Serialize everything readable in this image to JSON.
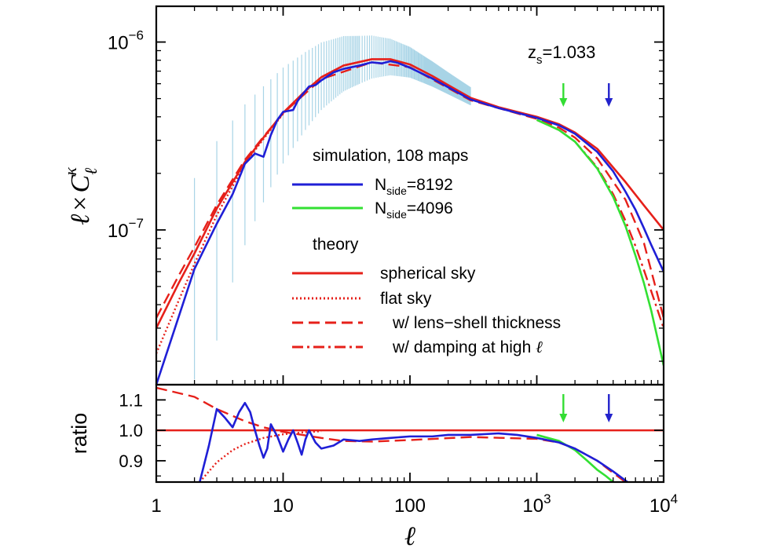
{
  "chart_data": [
    {
      "panel": "main",
      "type": "line",
      "x_scale": "log",
      "y_scale": "log",
      "xlim": [
        1,
        10000
      ],
      "ylim": [
        1.5e-08,
        1.55e-06
      ],
      "ytick_labels": [
        {
          "base": "10",
          "exp": "−6",
          "value": 1e-06
        },
        {
          "base": "10",
          "exp": "−7",
          "value": 1e-07
        }
      ],
      "annotation": {
        "label": "z",
        "sub": "s",
        "rest": "=1.033"
      },
      "arrows": [
        {
          "x": 1620,
          "color": "#33dd33"
        },
        {
          "x": 3700,
          "color": "#2222cc"
        }
      ],
      "legend": {
        "placement": "center",
        "group1_title": "simulation, 108 maps",
        "group2_title": "theory",
        "entries": [
          {
            "label": "N",
            "sub": "side",
            "rest": "=8192",
            "color": "#1f1fd6",
            "dash": "solid"
          },
          {
            "label": "N",
            "sub": "side",
            "rest": "=4096",
            "color": "#33e033",
            "dash": "solid"
          },
          {
            "label": "spherical sky",
            "sub": "",
            "rest": "",
            "color": "#e6201a",
            "dash": "solid"
          },
          {
            "label": "flat sky",
            "sub": "",
            "rest": "",
            "color": "#e6201a",
            "dash": "dotted"
          },
          {
            "label": "w/ lens−shell thickness",
            "sub": "",
            "rest": "",
            "color": "#e6201a",
            "dash": "dashed"
          },
          {
            "label": "w/ damping at high ",
            "sub": "",
            "rest": "ℓ",
            "color": "#e6201a",
            "dash": "dashdot"
          }
        ]
      },
      "error_band_color": "#a8d4e6",
      "series": [
        {
          "name": "spherical sky",
          "color": "#e6201a",
          "dash": "solid",
          "x": [
            1,
            1.5,
            2,
            3,
            5,
            7,
            10,
            15,
            20,
            30,
            50,
            70,
            100,
            150,
            200,
            300,
            500,
            700,
            1000,
            1500,
            2000,
            3000,
            5000,
            7000,
            10000
          ],
          "y": [
            3e-08,
            5.2e-08,
            7.5e-08,
            1.3e-07,
            2.3e-07,
            3.1e-07,
            4.2e-07,
            5.5e-07,
            6.5e-07,
            7.5e-07,
            8.1e-07,
            8.1e-07,
            7.6e-07,
            6.6e-07,
            5.9e-07,
            5.05e-07,
            4.5e-07,
            4.25e-07,
            4e-07,
            3.65e-07,
            3.3e-07,
            2.7e-07,
            1.8e-07,
            1.35e-07,
            1e-07
          ]
        },
        {
          "name": "flat sky",
          "color": "#e6201a",
          "dash": "dotted",
          "x": [
            1,
            1.5,
            2,
            3,
            5,
            7,
            10,
            15,
            20,
            30,
            50
          ],
          "y": [
            2.2e-08,
            4.2e-08,
            6.6e-08,
            1.2e-07,
            2.25e-07,
            3.05e-07,
            4.15e-07,
            5.48e-07,
            6.48e-07,
            7.5e-07,
            8.1e-07
          ]
        },
        {
          "name": "w/ lens−shell thickness",
          "color": "#e6201a",
          "dash": "dashed",
          "x": [
            1,
            1.5,
            2,
            3,
            5,
            7,
            10,
            20,
            50,
            100,
            300,
            1000,
            1500,
            2000,
            3000,
            5000,
            7000,
            10000
          ],
          "y": [
            3.4e-08,
            5.7e-08,
            8.1e-08,
            1.36e-07,
            2.36e-07,
            3.13e-07,
            4.18e-07,
            6.35e-07,
            7.8e-07,
            7.35e-07,
            4.9e-07,
            3.9e-07,
            3.5e-07,
            3.1e-07,
            2.4e-07,
            1.45e-07,
            8.5e-08,
            3.4e-08
          ]
        },
        {
          "name": "w/ damping at high ℓ",
          "color": "#e6201a",
          "dash": "dashdot",
          "x": [
            1000,
            1500,
            2000,
            3000,
            4000,
            5000,
            6000,
            7000,
            8000,
            10000
          ],
          "y": [
            3.85e-07,
            3.4e-07,
            2.95e-07,
            2.15e-07,
            1.55e-07,
            1.12e-07,
            8.2e-08,
            6.1e-08,
            4.7e-08,
            3e-08
          ]
        },
        {
          "name": "N_side=4096",
          "color": "#33e033",
          "dash": "solid",
          "x": [
            1000,
            1500,
            2000,
            3000,
            4000,
            5000,
            6000,
            7000,
            8000,
            10000
          ],
          "y": [
            3.85e-07,
            3.4e-07,
            2.95e-07,
            2.12e-07,
            1.5e-07,
            1.05e-07,
            7.3e-08,
            5.2e-08,
            3.7e-08,
            1.9e-08
          ]
        },
        {
          "name": "N_side=8192",
          "color": "#1f1fd6",
          "dash": "solid",
          "x": [
            1,
            2,
            3,
            4,
            5,
            6,
            7,
            8,
            9,
            10,
            11,
            12,
            13,
            14,
            15,
            16,
            18,
            20,
            25,
            30,
            40,
            50,
            60,
            70,
            80,
            100,
            150,
            200,
            300,
            500,
            700,
            1000,
            1500,
            2000,
            3000,
            4000,
            5000,
            6000,
            7000,
            8000,
            10000
          ],
          "y": [
            1.5e-08,
            6.2e-08,
            1.08e-07,
            1.55e-07,
            2.25e-07,
            2.55e-07,
            2.45e-07,
            3.2e-07,
            3.85e-07,
            4.25e-07,
            4.3e-07,
            4.35e-07,
            4.85e-07,
            5.2e-07,
            5.5e-07,
            5.8e-07,
            5.9e-07,
            6.25e-07,
            6.9e-07,
            7.2e-07,
            7.5e-07,
            7.8e-07,
            7.7e-07,
            7.9e-07,
            7.75e-07,
            7.3e-07,
            6.4e-07,
            5.75e-07,
            4.95e-07,
            4.45e-07,
            4.2e-07,
            3.95e-07,
            3.6e-07,
            3.25e-07,
            2.6e-07,
            2.05e-07,
            1.6e-07,
            1.28e-07,
            1.02e-07,
            8.3e-08,
            6e-08
          ]
        }
      ]
    },
    {
      "panel": "ratio",
      "type": "line",
      "x_scale": "log",
      "ylabel": "ratio",
      "xlabel": "ℓ",
      "xlim": [
        1,
        10000
      ],
      "ylim": [
        0.83,
        1.15
      ],
      "yticks": [
        0.9,
        1.0,
        1.1
      ],
      "ytick_labels": [
        "0.9",
        "1.0",
        "1.1"
      ],
      "xtick_labels": [
        {
          "base": "1",
          "exp": "",
          "value": 1
        },
        {
          "base": "10",
          "exp": "",
          "value": 10
        },
        {
          "base": "100",
          "exp": "",
          "value": 100
        },
        {
          "base": "10",
          "exp": "3",
          "value": 1000
        },
        {
          "base": "10",
          "exp": "4",
          "value": 10000
        }
      ],
      "arrows": [
        {
          "x": 1620,
          "color": "#33dd33"
        },
        {
          "x": 3700,
          "color": "#2222cc"
        }
      ],
      "series": [
        {
          "name": "spherical sky",
          "color": "#e6201a",
          "dash": "solid",
          "x": [
            1,
            10000
          ],
          "y": [
            1.0,
            1.0
          ]
        },
        {
          "name": "flat sky",
          "color": "#e6201a",
          "dash": "dotted",
          "x": [
            2.2,
            3,
            4,
            5,
            7,
            10,
            15,
            20
          ],
          "y": [
            0.83,
            0.895,
            0.935,
            0.955,
            0.975,
            0.987,
            0.994,
            0.997
          ]
        },
        {
          "name": "w/ lens−shell thickness",
          "color": "#e6201a",
          "dash": "dashed",
          "x": [
            1,
            2,
            3,
            5,
            7,
            10,
            20,
            30,
            50,
            100,
            300,
            1000,
            1500,
            2000,
            3000,
            4000,
            5000,
            6000,
            7000
          ],
          "y": [
            1.14,
            1.11,
            1.07,
            1.03,
            1.01,
            0.995,
            0.975,
            0.965,
            0.963,
            0.968,
            0.978,
            0.972,
            0.96,
            0.94,
            0.9,
            0.86,
            0.83,
            0.8,
            0.77
          ]
        },
        {
          "name": "N_side=4096",
          "color": "#33e033",
          "dash": "solid",
          "x": [
            1000,
            1500,
            2000,
            2500,
            3000,
            3500,
            4000
          ],
          "y": [
            0.985,
            0.965,
            0.935,
            0.9,
            0.87,
            0.85,
            0.83
          ]
        },
        {
          "name": "N_side=8192",
          "color": "#1f1fd6",
          "dash": "solid",
          "x": [
            2.2,
            2.6,
            3,
            3.5,
            4,
            4.5,
            5,
            5.5,
            6,
            6.5,
            7,
            7.5,
            8,
            9,
            10,
            11,
            12,
            13,
            14,
            15,
            16,
            18,
            20,
            25,
            30,
            40,
            50,
            70,
            100,
            150,
            200,
            300,
            500,
            700,
            1000,
            1500,
            2000,
            3000,
            4000,
            5000,
            6000,
            7000
          ],
          "y": [
            0.83,
            0.95,
            1.07,
            1.04,
            1.01,
            1.06,
            1.09,
            1.06,
            1.0,
            0.95,
            0.91,
            0.94,
            1.02,
            0.98,
            0.93,
            0.97,
            1.0,
            0.96,
            0.92,
            0.97,
            1.0,
            0.96,
            0.94,
            0.95,
            0.97,
            0.965,
            0.97,
            0.975,
            0.98,
            0.98,
            0.985,
            0.985,
            0.99,
            0.985,
            0.975,
            0.96,
            0.94,
            0.9,
            0.865,
            0.835,
            0.81,
            0.78
          ]
        }
      ]
    }
  ]
}
